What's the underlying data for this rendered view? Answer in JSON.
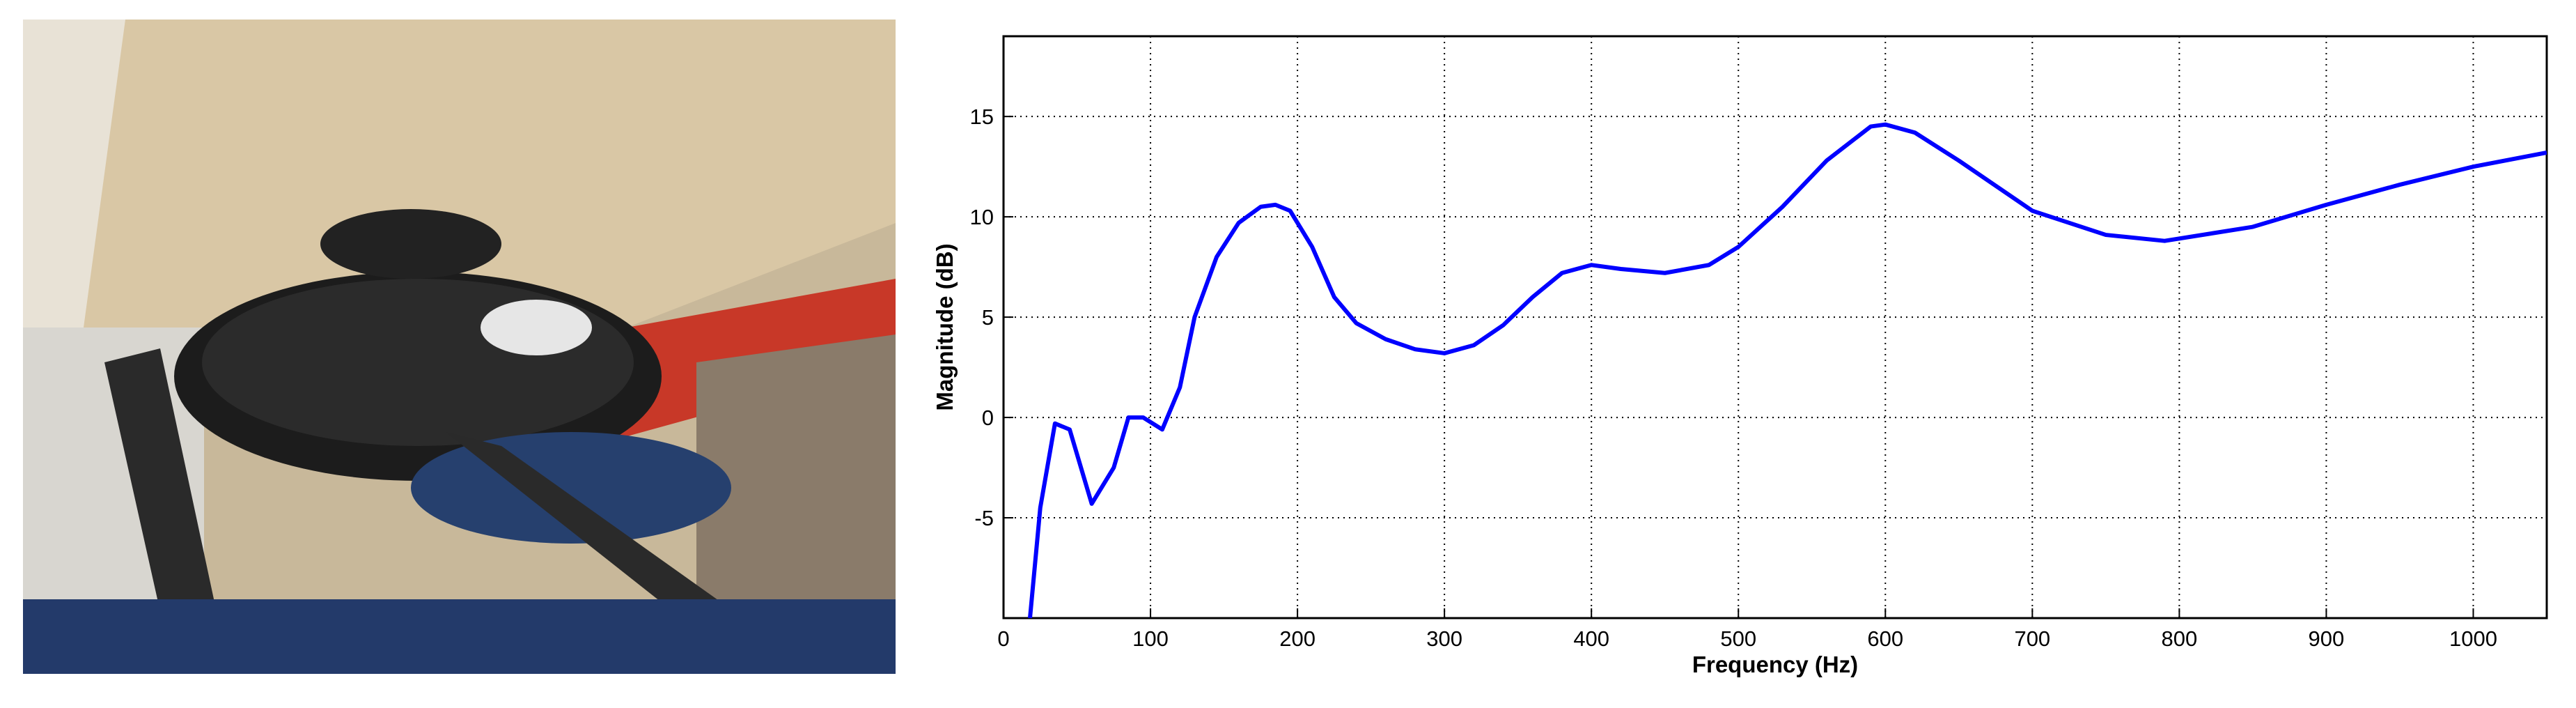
{
  "chart_data": {
    "type": "line",
    "xlabel": "Frequency (Hz)",
    "ylabel": "Magnitude (dB)",
    "x": [
      18,
      25,
      35,
      45,
      60,
      75,
      85,
      95,
      108,
      120,
      130,
      145,
      160,
      175,
      185,
      195,
      210,
      225,
      240,
      260,
      280,
      300,
      320,
      340,
      360,
      380,
      400,
      420,
      450,
      480,
      500,
      530,
      560,
      590,
      600,
      620,
      650,
      700,
      750,
      790,
      850,
      900,
      950,
      1000,
      1050
    ],
    "series": [
      {
        "color": "#0000ff",
        "values": [
          -10,
          -4.5,
          -0.3,
          -0.6,
          -4.3,
          -2.5,
          0,
          0,
          -0.6,
          1.5,
          5,
          8,
          9.7,
          10.5,
          10.6,
          10.3,
          8.5,
          6,
          4.7,
          3.9,
          3.4,
          3.2,
          3.6,
          4.6,
          6,
          7.2,
          7.6,
          7.4,
          7.2,
          7.6,
          8.5,
          10.5,
          12.8,
          14.5,
          14.6,
          14.2,
          12.8,
          10.3,
          9.1,
          8.8,
          9.5,
          10.6,
          11.6,
          12.5,
          13.2
        ]
      }
    ],
    "xlim": [
      0,
      1050
    ],
    "ylim": [
      -10,
      19
    ],
    "xticks": [
      0,
      100,
      200,
      300,
      400,
      500,
      600,
      700,
      800,
      900,
      1000
    ],
    "yticks": [
      -5,
      0,
      5,
      10,
      15
    ],
    "grid": true
  }
}
